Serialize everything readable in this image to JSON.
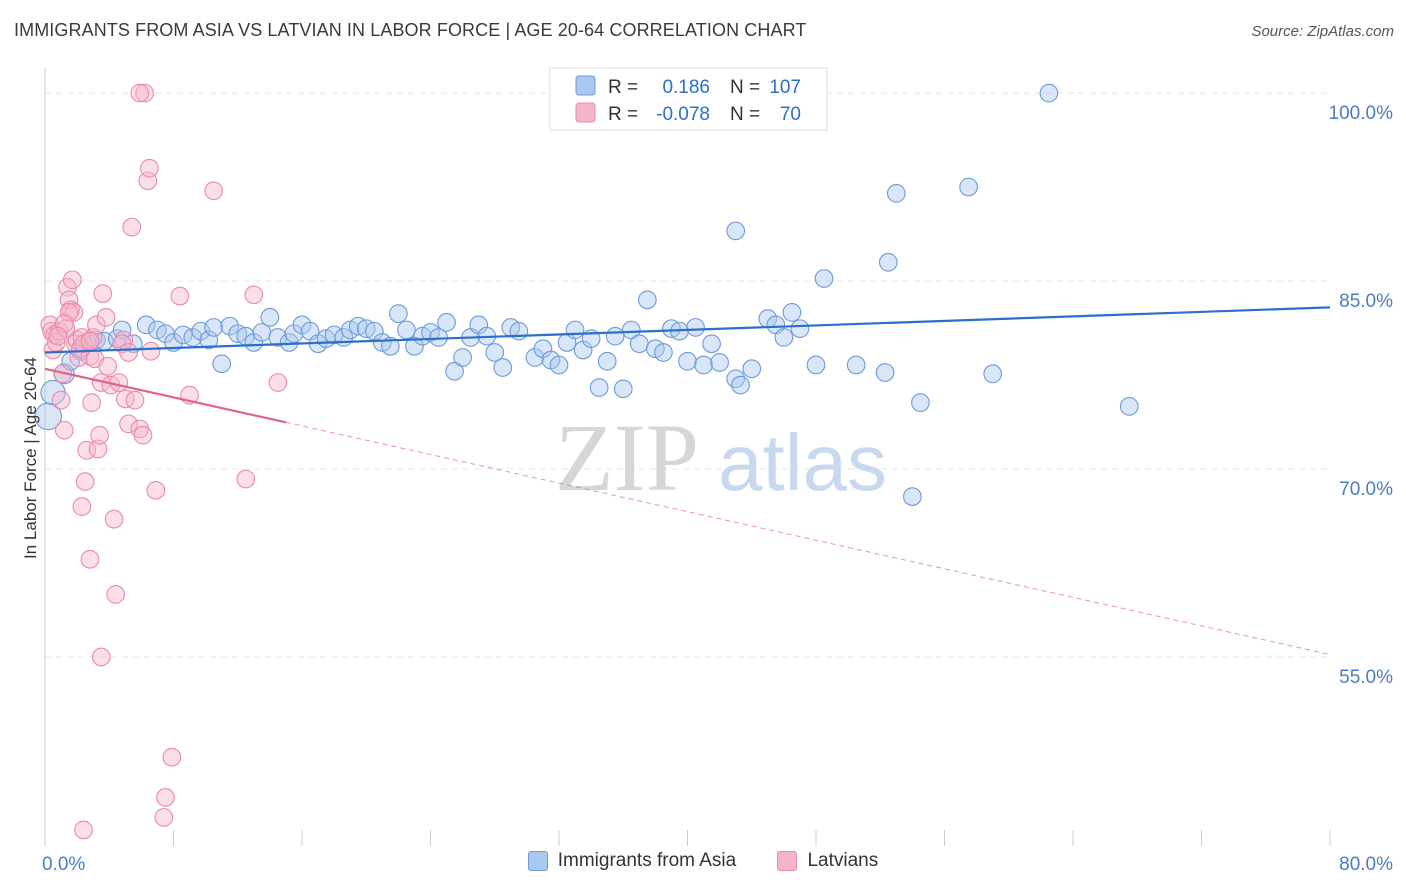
{
  "title": "IMMIGRANTS FROM ASIA VS LATVIAN IN LABOR FORCE | AGE 20-64 CORRELATION CHART",
  "source": "Source: ZipAtlas.com",
  "watermark": {
    "zip": "ZIP",
    "atlas": "atlas"
  },
  "colors": {
    "blue_fill": "#aac8ef",
    "blue_stroke": "#6b9bd8",
    "blue_line": "#2a6fcc",
    "pink_fill": "#f6b6ca",
    "pink_stroke": "#e98aa9",
    "pink_line": "#e2628e",
    "tick_label": "#4a7cc4",
    "grid": "#e4e4e4"
  },
  "legend_box": {
    "rows": [
      {
        "r_label": "R =",
        "r_value": "0.186",
        "n_label": "N =",
        "n_value": "107",
        "series": "blue"
      },
      {
        "r_label": "R =",
        "r_value": "-0.078",
        "n_label": "N =",
        "n_value": "70",
        "series": "pink"
      }
    ]
  },
  "chart_data": {
    "type": "scatter",
    "title": "IMMIGRANTS FROM ASIA VS LATVIAN IN LABOR FORCE | AGE 20-64 CORRELATION CHART",
    "xlabel": "",
    "ylabel": "In Labor Force | Age 20-64",
    "xlim": [
      0,
      80
    ],
    "ylim": [
      40,
      102
    ],
    "x_tick_labels": [
      {
        "value": 0,
        "label": "0.0%"
      },
      {
        "value": 80,
        "label": "80.0%"
      }
    ],
    "y_tick_labels": [
      {
        "value": 100,
        "label": "100.0%"
      },
      {
        "value": 85,
        "label": "85.0%"
      },
      {
        "value": 70,
        "label": "70.0%"
      },
      {
        "value": 55,
        "label": "55.0%"
      }
    ],
    "grid": true,
    "legend": "bottom-center",
    "series": [
      {
        "name": "Immigrants from Asia",
        "color": "blue",
        "trend": {
          "x": [
            0,
            80
          ],
          "y": [
            79.3,
            82.9
          ],
          "dashed_from": null
        },
        "points": [
          [
            0.2,
            74.2,
            12
          ],
          [
            0.5,
            76.1,
            11
          ],
          [
            1.2,
            77.6,
            9
          ],
          [
            1.6,
            78.6,
            8
          ],
          [
            2.2,
            79.4,
            8
          ],
          [
            2.6,
            80.1,
            8
          ],
          [
            3.2,
            80.3,
            8
          ],
          [
            3.7,
            80.2,
            8
          ],
          [
            4.5,
            80.4,
            8
          ],
          [
            4.8,
            81.1,
            8
          ],
          [
            5.5,
            80.0,
            8
          ],
          [
            6.3,
            81.5,
            8
          ],
          [
            7.0,
            81.1,
            8
          ],
          [
            7.5,
            80.8,
            8
          ],
          [
            8.0,
            80.1,
            8
          ],
          [
            8.6,
            80.7,
            8
          ],
          [
            9.2,
            80.5,
            8
          ],
          [
            9.7,
            81.0,
            8
          ],
          [
            10.2,
            80.3,
            8
          ],
          [
            10.5,
            81.3,
            8
          ],
          [
            11.0,
            78.4,
            8
          ],
          [
            11.5,
            81.4,
            8
          ],
          [
            12.0,
            80.8,
            8
          ],
          [
            12.5,
            80.6,
            8
          ],
          [
            13.0,
            80.1,
            8
          ],
          [
            13.5,
            80.9,
            8
          ],
          [
            14.0,
            82.1,
            8
          ],
          [
            14.5,
            80.5,
            8
          ],
          [
            15.2,
            80.1,
            8
          ],
          [
            15.5,
            80.8,
            8
          ],
          [
            16.0,
            81.5,
            8
          ],
          [
            16.5,
            81.0,
            8
          ],
          [
            17.0,
            80.0,
            8
          ],
          [
            17.5,
            80.4,
            8
          ],
          [
            18.0,
            80.7,
            8
          ],
          [
            18.6,
            80.5,
            8
          ],
          [
            19.0,
            81.1,
            8
          ],
          [
            19.5,
            81.4,
            8
          ],
          [
            20.0,
            81.2,
            8
          ],
          [
            20.5,
            81.0,
            8
          ],
          [
            21.0,
            80.1,
            8
          ],
          [
            21.5,
            79.8,
            8
          ],
          [
            22.0,
            82.4,
            8
          ],
          [
            22.5,
            81.1,
            8
          ],
          [
            23.0,
            79.8,
            8
          ],
          [
            23.5,
            80.6,
            8
          ],
          [
            24.0,
            80.9,
            8
          ],
          [
            24.5,
            80.5,
            8
          ],
          [
            25.0,
            81.7,
            8
          ],
          [
            25.5,
            77.8,
            8
          ],
          [
            26.0,
            78.9,
            8
          ],
          [
            26.5,
            80.5,
            8
          ],
          [
            27.0,
            81.5,
            8
          ],
          [
            27.5,
            80.6,
            8
          ],
          [
            28.0,
            79.3,
            8
          ],
          [
            28.5,
            78.1,
            8
          ],
          [
            29.0,
            81.3,
            8
          ],
          [
            29.5,
            81.0,
            8
          ],
          [
            30.5,
            78.9,
            8
          ],
          [
            31.0,
            79.6,
            8
          ],
          [
            31.5,
            78.7,
            8
          ],
          [
            32.0,
            78.3,
            8
          ],
          [
            32.5,
            80.1,
            8
          ],
          [
            33.0,
            81.1,
            8
          ],
          [
            33.5,
            79.5,
            8
          ],
          [
            34.0,
            80.4,
            8
          ],
          [
            34.5,
            76.5,
            8
          ],
          [
            35.0,
            78.6,
            8
          ],
          [
            35.5,
            80.6,
            8
          ],
          [
            36.0,
            76.4,
            8
          ],
          [
            36.5,
            81.1,
            8
          ],
          [
            37.0,
            80.0,
            8
          ],
          [
            37.5,
            83.5,
            8
          ],
          [
            38.0,
            79.6,
            8
          ],
          [
            38.5,
            79.3,
            8
          ],
          [
            39.0,
            81.2,
            8
          ],
          [
            39.5,
            81.0,
            8
          ],
          [
            40.0,
            78.6,
            8
          ],
          [
            40.5,
            81.3,
            8
          ],
          [
            41.0,
            78.3,
            8
          ],
          [
            41.5,
            80.0,
            8
          ],
          [
            42.0,
            78.5,
            8
          ],
          [
            43.0,
            77.2,
            8
          ],
          [
            43.3,
            76.7,
            8
          ],
          [
            44.0,
            78.0,
            8
          ],
          [
            43.0,
            89.0,
            8
          ],
          [
            45.0,
            82.0,
            8
          ],
          [
            45.5,
            81.5,
            8
          ],
          [
            46.0,
            80.5,
            8
          ],
          [
            46.5,
            82.5,
            8
          ],
          [
            47.0,
            81.2,
            8
          ],
          [
            48.0,
            78.3,
            8
          ],
          [
            48.5,
            85.2,
            8
          ],
          [
            50.5,
            78.3,
            8
          ],
          [
            52.3,
            77.7,
            8
          ],
          [
            52.5,
            86.5,
            8
          ],
          [
            53.0,
            92.0,
            8
          ],
          [
            54.0,
            67.8,
            8
          ],
          [
            54.5,
            75.3,
            8
          ],
          [
            57.5,
            92.5,
            8
          ],
          [
            59.0,
            77.6,
            8
          ],
          [
            62.5,
            100.0,
            8
          ],
          [
            67.5,
            75.0,
            8
          ],
          [
            48.0,
            100.1,
            8
          ]
        ]
      },
      {
        "name": "Latvians",
        "color": "pink",
        "trend": {
          "x": [
            0,
            80
          ],
          "y": [
            78.0,
            55.2
          ],
          "dashed_from": 15
        },
        "points": [
          [
            0.3,
            81.5,
            8
          ],
          [
            0.4,
            81.0,
            8
          ],
          [
            0.5,
            79.5,
            8
          ],
          [
            0.6,
            80.7,
            8
          ],
          [
            0.7,
            80.1,
            8
          ],
          [
            0.9,
            81.0,
            8
          ],
          [
            1.0,
            75.5,
            8
          ],
          [
            1.1,
            77.6,
            8
          ],
          [
            1.2,
            73.1,
            8
          ],
          [
            1.3,
            81.2,
            8
          ],
          [
            1.4,
            84.5,
            8
          ],
          [
            1.5,
            83.5,
            8
          ],
          [
            1.6,
            82.7,
            8
          ],
          [
            1.7,
            85.1,
            8
          ],
          [
            1.8,
            82.5,
            8
          ],
          [
            1.9,
            80.0,
            8
          ],
          [
            2.0,
            80.3,
            8
          ],
          [
            2.1,
            78.9,
            8
          ],
          [
            2.2,
            79.6,
            8
          ],
          [
            2.3,
            80.5,
            8
          ],
          [
            2.4,
            80.0,
            8
          ],
          [
            2.5,
            69.0,
            8
          ],
          [
            2.6,
            71.5,
            8
          ],
          [
            2.8,
            79.0,
            8
          ],
          [
            2.9,
            75.3,
            8
          ],
          [
            3.0,
            80.5,
            8
          ],
          [
            3.1,
            78.8,
            8
          ],
          [
            3.2,
            81.5,
            8
          ],
          [
            3.3,
            71.6,
            8
          ],
          [
            3.4,
            72.7,
            8
          ],
          [
            3.5,
            76.9,
            8
          ],
          [
            3.6,
            84.0,
            8
          ],
          [
            3.8,
            82.1,
            8
          ],
          [
            3.9,
            78.2,
            8
          ],
          [
            4.1,
            76.7,
            8
          ],
          [
            4.3,
            66.0,
            8
          ],
          [
            4.4,
            60.0,
            8
          ],
          [
            4.6,
            76.9,
            8
          ],
          [
            4.9,
            80.3,
            8
          ],
          [
            5.0,
            75.6,
            8
          ],
          [
            5.2,
            73.6,
            8
          ],
          [
            5.4,
            89.3,
            8
          ],
          [
            5.6,
            75.5,
            8
          ],
          [
            5.9,
            73.2,
            8
          ],
          [
            6.1,
            72.7,
            8
          ],
          [
            6.4,
            93.0,
            8
          ],
          [
            6.6,
            79.4,
            8
          ],
          [
            6.5,
            94.0,
            8
          ],
          [
            6.9,
            68.3,
            8
          ],
          [
            7.5,
            43.8,
            8
          ],
          [
            7.9,
            47.0,
            8
          ],
          [
            8.4,
            83.8,
            8
          ],
          [
            9.0,
            75.9,
            8
          ],
          [
            10.5,
            92.2,
            8
          ],
          [
            12.5,
            69.2,
            8
          ],
          [
            13.0,
            83.9,
            8
          ],
          [
            14.5,
            76.9,
            8
          ],
          [
            2.3,
            67.0,
            8
          ],
          [
            2.8,
            62.8,
            8
          ],
          [
            3.5,
            55.0,
            8
          ],
          [
            4.8,
            80.0,
            8
          ],
          [
            5.2,
            79.3,
            8
          ],
          [
            6.2,
            100.0,
            8
          ],
          [
            5.9,
            100.0,
            8
          ],
          [
            7.4,
            42.2,
            8
          ],
          [
            2.4,
            41.2,
            8
          ],
          [
            1.5,
            82.5,
            8
          ],
          [
            1.2,
            81.6,
            8
          ],
          [
            0.8,
            80.6,
            8
          ],
          [
            2.8,
            80.2,
            8
          ]
        ]
      }
    ]
  },
  "bottom_legend": [
    {
      "label": "Immigrants from Asia",
      "series": "blue"
    },
    {
      "label": "Latvians",
      "series": "pink"
    }
  ]
}
